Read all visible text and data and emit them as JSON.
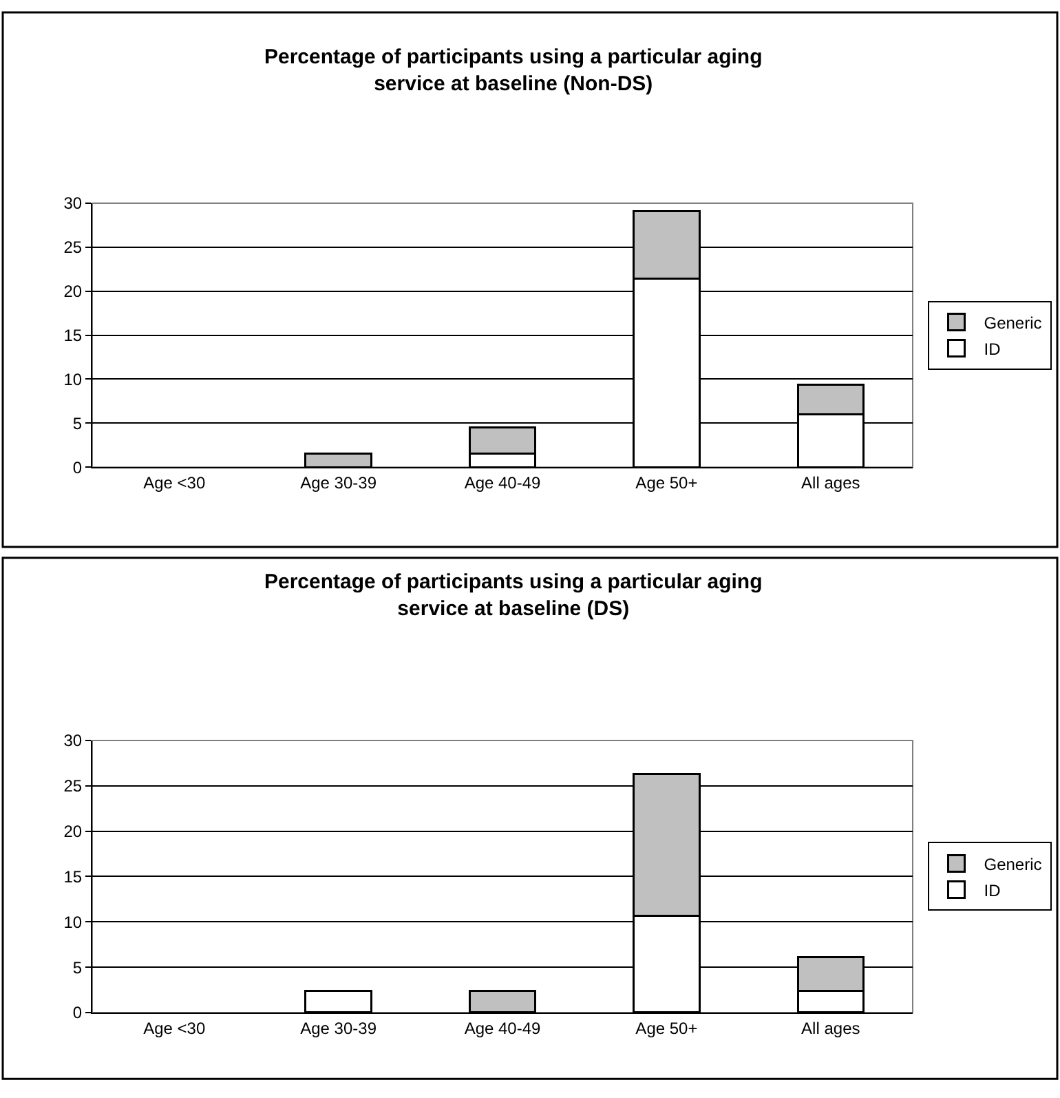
{
  "chart_data": [
    {
      "type": "bar",
      "title": "Percentage of participants using a particular aging service at baseline (Non-DS)",
      "categories": [
        "Age <30",
        "Age 30-39",
        "Age 40-49",
        "Age 50+",
        "All ages"
      ],
      "stacked": true,
      "ylim": [
        0,
        30
      ],
      "yticks": [
        0,
        5,
        10,
        15,
        20,
        25,
        30
      ],
      "grid": "y",
      "legend": "right",
      "series": [
        {
          "name": "ID",
          "color": "#ffffff",
          "values": [
            0,
            0,
            1.5,
            21.4,
            6.0
          ]
        },
        {
          "name": "Generic",
          "color": "#c0c0c0",
          "values": [
            0,
            1.5,
            3.0,
            7.7,
            3.4
          ]
        }
      ]
    },
    {
      "type": "bar",
      "title": "Percentage of participants using a particular aging service at baseline (DS)",
      "categories": [
        "Age <30",
        "Age 30-39",
        "Age 40-49",
        "Age 50+",
        "All ages"
      ],
      "stacked": true,
      "ylim": [
        0,
        30
      ],
      "yticks": [
        0,
        5,
        10,
        15,
        20,
        25,
        30
      ],
      "grid": "y",
      "legend": "right",
      "series": [
        {
          "name": "ID",
          "color": "#ffffff",
          "values": [
            0,
            2.4,
            0,
            10.7,
            2.4
          ]
        },
        {
          "name": "Generic",
          "color": "#c0c0c0",
          "values": [
            0,
            0,
            2.4,
            15.6,
            3.7
          ]
        }
      ]
    }
  ]
}
